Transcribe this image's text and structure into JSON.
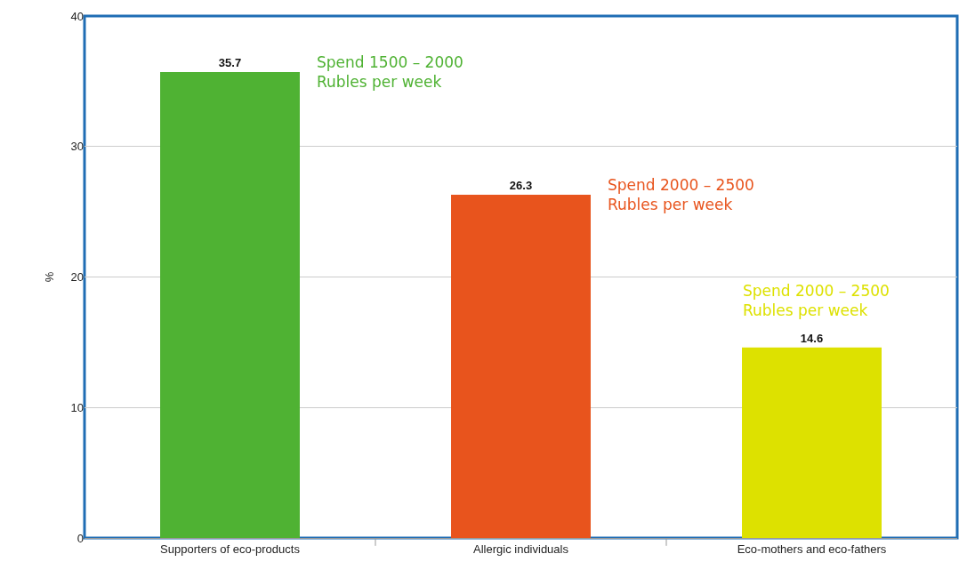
{
  "chart_data": {
    "type": "bar",
    "categories": [
      "Supporters of eco-products",
      "Allergic individuals",
      "Eco-mothers and eco-fathers"
    ],
    "values": [
      35.7,
      26.3,
      14.6
    ],
    "colors": [
      "#4fb233",
      "#e8541d",
      "#dde100"
    ],
    "ylabel": "%",
    "ylim": [
      0,
      40
    ],
    "yticks": [
      0,
      10,
      20,
      30,
      40
    ],
    "grid": "y",
    "legend": false,
    "data_labels": true,
    "annotations": [
      "Spend 1500 – 2000\nRubles per week",
      "Spend 2000 – 2500\nRubles per week",
      "Spend 2000 – 2500\nRubles per week"
    ]
  }
}
